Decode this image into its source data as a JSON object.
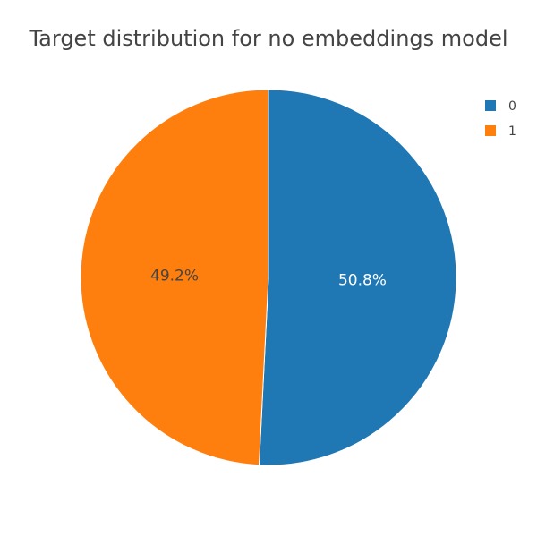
{
  "chart_data": {
    "type": "pie",
    "title": "Target distribution for no embeddings model",
    "labels": [
      "0",
      "1"
    ],
    "values": [
      50.8,
      49.2
    ],
    "value_labels": [
      "50.8%",
      "49.2%"
    ],
    "colors": [
      "#1f77b4",
      "#ff7f0e"
    ],
    "label_colors": [
      "#ffffff",
      "#444444"
    ],
    "legend_position": "top-right",
    "start": "top",
    "direction": "clockwise"
  }
}
